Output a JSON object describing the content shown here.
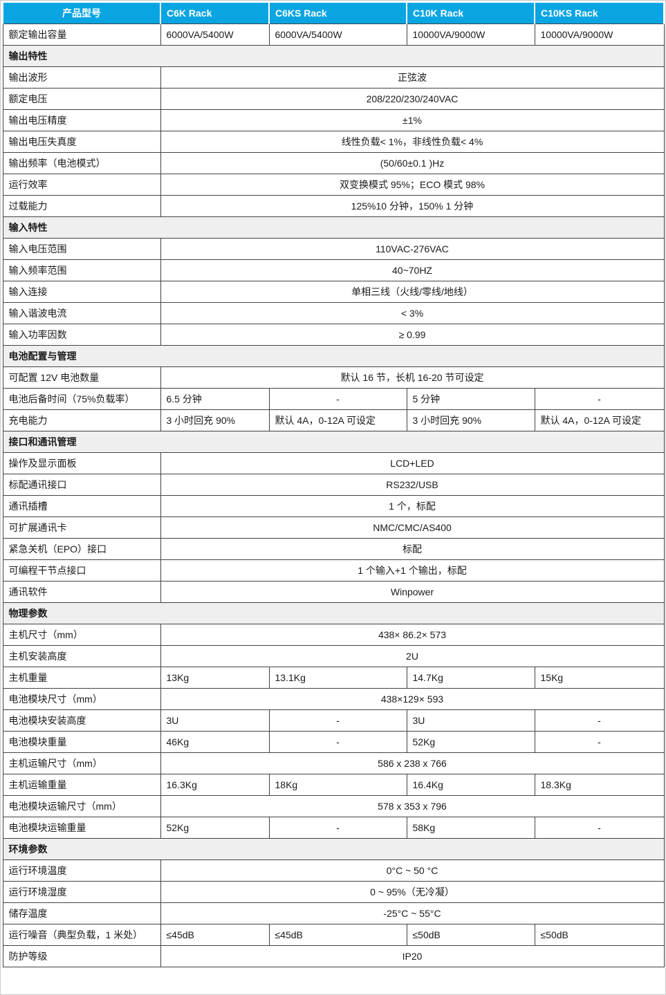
{
  "colors": {
    "header_bg": "#09a5e2",
    "header_text": "#ffffff",
    "section_bg": "#efefef",
    "border": "#424242"
  },
  "table": {
    "header": {
      "label": "产品型号",
      "models": [
        "C6K Rack",
        "C6KS Rack",
        "C10K Rack",
        "C10KS Rack"
      ]
    },
    "rows": [
      {
        "type": "values",
        "label": "额定输出容量",
        "values": [
          "6000VA/5400W",
          "6000VA/5400W",
          "10000VA/9000W",
          "10000VA/9000W"
        ]
      },
      {
        "type": "section",
        "label": "输出特性"
      },
      {
        "type": "span",
        "label": "输出波形",
        "value": "正弦波"
      },
      {
        "type": "span",
        "label": "额定电压",
        "value": "208/220/230/240VAC"
      },
      {
        "type": "span",
        "label": "输出电压精度",
        "value": "±1%"
      },
      {
        "type": "span",
        "label": "输出电压失真度",
        "value": "线性负载< 1%，非线性负载< 4%"
      },
      {
        "type": "span",
        "label": "输出频率（电池模式）",
        "value": "(50/60±0.1 )Hz"
      },
      {
        "type": "span",
        "label": "运行效率",
        "value": "双变换模式 95%；ECO 模式 98%"
      },
      {
        "type": "span",
        "label": "过载能力",
        "value": "125%10 分钟，150% 1 分钟"
      },
      {
        "type": "section",
        "label": "输入特性"
      },
      {
        "type": "span",
        "label": "输入电压范围",
        "value": "110VAC-276VAC"
      },
      {
        "type": "span",
        "label": "输入频率范围",
        "value": "40~70HZ"
      },
      {
        "type": "span",
        "label": "输入连接",
        "value": "单相三线（火线/零线/地线）"
      },
      {
        "type": "span",
        "label": "输入谐波电流",
        "value": "< 3%"
      },
      {
        "type": "span",
        "label": "输入功率因数",
        "value": "≥ 0.99"
      },
      {
        "type": "section",
        "label": "电池配置与管理"
      },
      {
        "type": "span",
        "label": "可配置 12V 电池数量",
        "value": "默认 16 节，长机 16-20 节可设定"
      },
      {
        "type": "values",
        "label": "电池后备时间（75%负载率）",
        "values": [
          "6.5 分钟",
          "-",
          "5 分钟",
          "-"
        ]
      },
      {
        "type": "values",
        "label": "充电能力",
        "values": [
          "3 小时回充 90%",
          "默认 4A，0-12A 可设定",
          "3 小时回充 90%",
          "默认 4A，0-12A 可设定"
        ]
      },
      {
        "type": "section",
        "label": "接口和通讯管理"
      },
      {
        "type": "span",
        "label": "操作及显示面板",
        "value": "LCD+LED"
      },
      {
        "type": "span",
        "label": "标配通讯接口",
        "value": "RS232/USB"
      },
      {
        "type": "span",
        "label": "通讯插槽",
        "value": "1 个，标配"
      },
      {
        "type": "span",
        "label": "可扩展通讯卡",
        "value": "NMC/CMC/AS400"
      },
      {
        "type": "span",
        "label": "紧急关机（EPO）接口",
        "value": "标配"
      },
      {
        "type": "span",
        "label": "可编程干节点接口",
        "value": "1 个输入+1 个输出，标配"
      },
      {
        "type": "span",
        "label": "通讯软件",
        "value": "Winpower"
      },
      {
        "type": "section",
        "label": "物理参数"
      },
      {
        "type": "span",
        "label": "主机尺寸（mm）",
        "value": "438× 86.2× 573"
      },
      {
        "type": "span",
        "label": "主机安装高度",
        "value": "2U"
      },
      {
        "type": "values",
        "label": "主机重量",
        "values": [
          "13Kg",
          "13.1Kg",
          "14.7Kg",
          "15Kg"
        ]
      },
      {
        "type": "span",
        "label": "电池模块尺寸（mm）",
        "value": "438×129× 593"
      },
      {
        "type": "values",
        "label": "电池模块安装高度",
        "values": [
          "3U",
          "-",
          "3U",
          "-"
        ]
      },
      {
        "type": "values",
        "label": "电池模块重量",
        "values": [
          "46Kg",
          "-",
          "52Kg",
          "-"
        ]
      },
      {
        "type": "span",
        "label": "主机运输尺寸（mm）",
        "value": "586 x 238 x 766"
      },
      {
        "type": "values",
        "label": "主机运输重量",
        "values": [
          "16.3Kg",
          "18Kg",
          "16.4Kg",
          "18.3Kg"
        ]
      },
      {
        "type": "span",
        "label": "电池模块运输尺寸（mm）",
        "value": "578 x 353 x 796"
      },
      {
        "type": "values",
        "label": "电池模块运输重量",
        "values": [
          "52Kg",
          "-",
          "58Kg",
          "-"
        ]
      },
      {
        "type": "section",
        "label": "环境参数"
      },
      {
        "type": "span",
        "label": "运行环境温度",
        "value": "0°C ~ 50 °C"
      },
      {
        "type": "span",
        "label": "运行环境湿度",
        "value": "0 ~ 95%（无冷凝）"
      },
      {
        "type": "span",
        "label": "储存温度",
        "value": "-25°C ~ 55°C"
      },
      {
        "type": "values",
        "label": "运行噪音（典型负载，1 米处）",
        "values": [
          "≤45dB",
          "≤45dB",
          "≤50dB",
          "≤50dB"
        ]
      },
      {
        "type": "span",
        "label": "防护等级",
        "value": "IP20"
      }
    ]
  }
}
